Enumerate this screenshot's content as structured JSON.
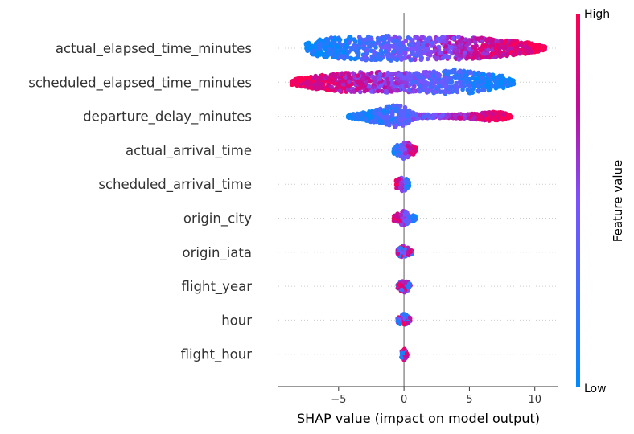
{
  "chart_data": {
    "type": "scatter",
    "subtype": "shap-beeswarm",
    "xlabel": "SHAP value (impact on model output)",
    "xlim": [
      -9.6,
      11.8
    ],
    "xticks": [
      {
        "value": -5,
        "label": "−5"
      },
      {
        "value": 0,
        "label": "0"
      },
      {
        "value": 5,
        "label": "5"
      },
      {
        "value": 10,
        "label": "10"
      }
    ],
    "features": [
      {
        "name": "actual_elapsed_time_minutes",
        "min": -7.5,
        "max": 10.8,
        "trend": "increasing",
        "density": [
          [
            -7.5,
            0.35
          ],
          [
            -6,
            0.8
          ],
          [
            -4,
            0.9
          ],
          [
            -2,
            0.95
          ],
          [
            0,
            1.0
          ],
          [
            2,
            0.85
          ],
          [
            4,
            0.9
          ],
          [
            6,
            0.8
          ],
          [
            8,
            0.6
          ],
          [
            9.5,
            0.45
          ],
          [
            10.8,
            0.15
          ]
        ]
      },
      {
        "name": "scheduled_elapsed_time_minutes",
        "min": -8.6,
        "max": 8.4,
        "trend": "decreasing",
        "density": [
          [
            -8.6,
            0.2
          ],
          [
            -7,
            0.5
          ],
          [
            -5,
            0.75
          ],
          [
            -3,
            0.8
          ],
          [
            -1,
            0.8
          ],
          [
            1,
            0.75
          ],
          [
            3,
            0.9
          ],
          [
            4,
            1.0
          ],
          [
            6,
            0.7
          ],
          [
            7.5,
            0.5
          ],
          [
            8.4,
            0.15
          ]
        ]
      },
      {
        "name": "departure_delay_minutes",
        "min": -4.3,
        "max": 8.2,
        "trend": "increasing",
        "density": [
          [
            -4.3,
            0.1
          ],
          [
            -3,
            0.35
          ],
          [
            -1.5,
            0.65
          ],
          [
            -0.3,
            1.0
          ],
          [
            0.5,
            0.4
          ],
          [
            1,
            0.15
          ],
          [
            3,
            0.12
          ],
          [
            5,
            0.18
          ],
          [
            6.5,
            0.35
          ],
          [
            7.5,
            0.3
          ],
          [
            8.2,
            0.1
          ]
        ]
      },
      {
        "name": "actual_arrival_time",
        "min": -0.8,
        "max": 0.9,
        "trend": "increasing",
        "density": [
          [
            -0.8,
            0.25
          ],
          [
            -0.3,
            0.5
          ],
          [
            0,
            0.7
          ],
          [
            0.3,
            0.6
          ],
          [
            0.9,
            0.2
          ]
        ]
      },
      {
        "name": "scheduled_arrival_time",
        "min": -0.6,
        "max": 0.4,
        "trend": "decreasing",
        "density": [
          [
            -0.6,
            0.3
          ],
          [
            -0.2,
            0.5
          ],
          [
            0,
            0.6
          ],
          [
            0.2,
            0.4
          ],
          [
            0.4,
            0.15
          ]
        ]
      },
      {
        "name": "origin_city",
        "min": -0.8,
        "max": 0.9,
        "trend": "decreasing",
        "density": [
          [
            -0.8,
            0.2
          ],
          [
            -0.3,
            0.45
          ],
          [
            0,
            0.6
          ],
          [
            0.3,
            0.4
          ],
          [
            0.9,
            0.15
          ]
        ]
      },
      {
        "name": "origin_iata",
        "min": -0.5,
        "max": 0.6,
        "trend": "mixed",
        "density": [
          [
            -0.5,
            0.2
          ],
          [
            -0.2,
            0.45
          ],
          [
            0,
            0.55
          ],
          [
            0.2,
            0.45
          ],
          [
            0.6,
            0.15
          ]
        ]
      },
      {
        "name": "flight_year",
        "min": -0.5,
        "max": 0.5,
        "trend": "mixed",
        "density": [
          [
            -0.5,
            0.2
          ],
          [
            -0.2,
            0.4
          ],
          [
            0,
            0.5
          ],
          [
            0.2,
            0.4
          ],
          [
            0.5,
            0.15
          ]
        ]
      },
      {
        "name": "hour",
        "min": -0.5,
        "max": 0.5,
        "trend": "mixed",
        "density": [
          [
            -0.5,
            0.2
          ],
          [
            -0.2,
            0.4
          ],
          [
            0,
            0.5
          ],
          [
            0.2,
            0.4
          ],
          [
            0.5,
            0.15
          ]
        ]
      },
      {
        "name": "flight_hour",
        "min": -0.2,
        "max": 0.25,
        "trend": "mixed",
        "density": [
          [
            -0.2,
            0.3
          ],
          [
            0,
            0.45
          ],
          [
            0.25,
            0.2
          ]
        ]
      }
    ],
    "colorbar": {
      "label": "Feature value",
      "high": "High",
      "low": "Low",
      "low_color": "#008bfb",
      "high_color": "#ff0052"
    },
    "grid": false
  }
}
